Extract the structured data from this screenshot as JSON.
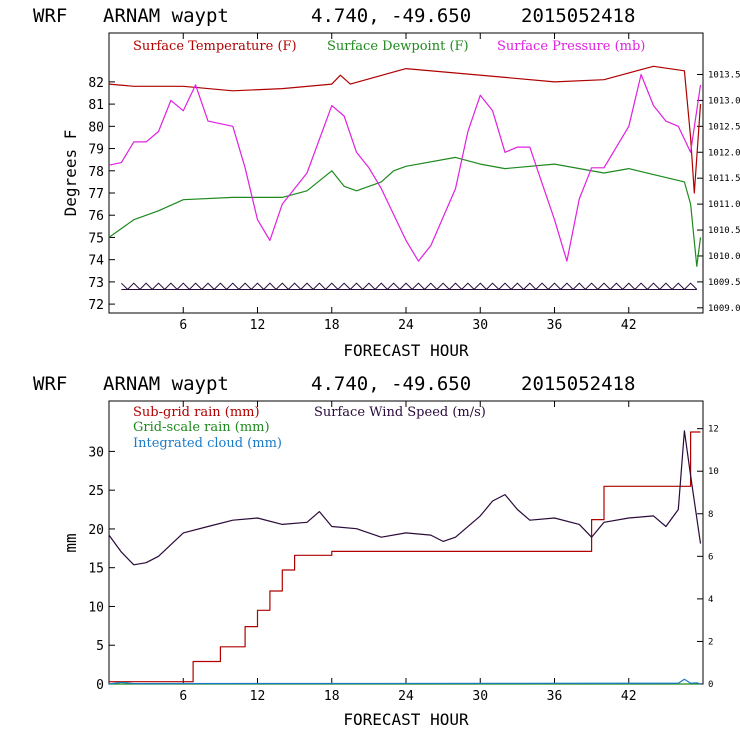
{
  "colors": {
    "temp": "#b00000",
    "dew": "#1e8a1e",
    "pres": "#e020e0",
    "wind": "#2a0a3a",
    "cloud": "#1a7ac8",
    "rain": "#b00000",
    "grid": "#1e8a1e"
  },
  "chart_data": [
    {
      "type": "line",
      "header": {
        "model": "WRF",
        "station": "ARNAM waypt",
        "coords": "4.740, -49.650",
        "date": "2015052418"
      },
      "xlabel": "FORECAST HOUR",
      "ylabel": "Degrees F",
      "xlim": [
        0,
        48
      ],
      "ylim": [
        71.6,
        84.2
      ],
      "ylim_right": [
        1008.9,
        1014.3
      ],
      "xticks": [
        "6",
        "12",
        "18",
        "24",
        "30",
        "36",
        "42"
      ],
      "yticks": [
        "72",
        "73",
        "74",
        "75",
        "76",
        "77",
        "78",
        "79",
        "80",
        "81",
        "82"
      ],
      "yticks_right": [
        "1009.0",
        "1009.5",
        "1010.0",
        "1010.5",
        "1011.0",
        "1011.5",
        "1012.0",
        "1012.5",
        "1013.0",
        "1013.5"
      ],
      "series": [
        {
          "name": "Surface Temperature (F)",
          "axis": "left",
          "color": "temp",
          "x": [
            0,
            2,
            6,
            10,
            14,
            18,
            18.7,
            19.5,
            24,
            28,
            32,
            36,
            40,
            44,
            46.5,
            47,
            47.3,
            47.8
          ],
          "y": [
            81.9,
            81.8,
            81.8,
            81.6,
            81.7,
            81.9,
            82.3,
            81.9,
            82.6,
            82.4,
            82.2,
            82,
            82.1,
            82.7,
            82.5,
            79.5,
            77,
            81
          ]
        },
        {
          "name": "Surface Dewpoint (F)",
          "axis": "left",
          "color": "dew",
          "x": [
            0,
            2,
            4,
            6,
            10,
            14,
            16,
            18,
            19,
            20,
            22,
            23,
            24,
            28,
            30,
            32,
            36,
            40,
            42,
            46.5,
            47,
            47.5,
            47.8
          ],
          "y": [
            75,
            75.8,
            76.2,
            76.7,
            76.8,
            76.8,
            77.1,
            78,
            77.3,
            77.1,
            77.5,
            78,
            78.2,
            78.6,
            78.3,
            78.1,
            78.3,
            77.9,
            78.1,
            77.5,
            76.5,
            73.7,
            75
          ]
        },
        {
          "name": "Surface Pressure (mb)",
          "axis": "right",
          "color": "pres",
          "x": [
            0,
            1,
            2,
            3,
            4,
            5,
            6,
            7,
            8,
            10,
            11,
            12,
            13,
            14,
            16,
            18,
            19,
            20,
            21,
            22,
            24,
            25,
            26,
            28,
            29,
            30,
            31,
            32,
            33,
            34,
            35,
            36,
            37,
            38,
            39,
            40,
            42,
            43,
            44,
            45,
            46,
            47,
            47.8
          ],
          "y": [
            1011.75,
            1011.8,
            1012.2,
            1012.2,
            1012.4,
            1013.0,
            1012.8,
            1013.3,
            1012.6,
            1012.5,
            1011.7,
            1010.7,
            1010.3,
            1011.0,
            1011.6,
            1012.9,
            1012.7,
            1012.0,
            1011.7,
            1011.3,
            1010.3,
            1009.9,
            1010.2,
            1011.3,
            1012.4,
            1013.1,
            1012.8,
            1012.0,
            1012.1,
            1012.1,
            1011.4,
            1010.7,
            1009.9,
            1011.1,
            1011.7,
            1011.7,
            1012.5,
            1013.5,
            1012.9,
            1012.6,
            1012.5,
            1012.0,
            1013.3
          ]
        }
      ],
      "rain_marks": {
        "y": 72.8,
        "amplitude": 0.14,
        "period_hours": 1
      }
    },
    {
      "type": "line",
      "header": {
        "model": "WRF",
        "station": "ARNAM waypt",
        "coords": "4.740, -49.650",
        "date": "2015052418"
      },
      "xlabel": "FORECAST HOUR",
      "ylabel": "mm",
      "xlim": [
        0,
        48
      ],
      "ylim": [
        0,
        36.5
      ],
      "ylim_right": [
        0,
        13.3
      ],
      "xticks": [
        "6",
        "12",
        "18",
        "24",
        "30",
        "36",
        "42"
      ],
      "yticks": [
        "0",
        "5",
        "10",
        "15",
        "20",
        "25",
        "30"
      ],
      "yticks_right": [
        "0",
        "2",
        "4",
        "6",
        "8",
        "10",
        "12"
      ],
      "series": [
        {
          "name": "Sub-grid rain (mm)",
          "axis": "left",
          "color": "rain",
          "step": true,
          "x": [
            0,
            1,
            6.8,
            9,
            11,
            12,
            13,
            14,
            15,
            18,
            39,
            40,
            47,
            47.8
          ],
          "y": [
            0.3,
            0.3,
            2.9,
            4.8,
            7.4,
            9.5,
            12,
            14.7,
            16.6,
            17.1,
            21.2,
            25.5,
            32.5,
            32.5
          ]
        },
        {
          "name": "Grid-scale rain (mm)",
          "axis": "left",
          "color": "grid",
          "step": true,
          "x": [
            0,
            47.8
          ],
          "y": [
            0,
            0
          ]
        },
        {
          "name": "Integrated cloud (mm)",
          "axis": "left",
          "color": "cloud",
          "x": [
            0,
            1,
            2,
            46,
            46.5,
            47,
            47.5,
            47.8
          ],
          "y": [
            0,
            0.2,
            0.05,
            0.1,
            0.6,
            0.1,
            0.15,
            0
          ]
        },
        {
          "name": "Surface Wind Speed (m/s)",
          "axis": "right",
          "color": "wind",
          "x": [
            0,
            1,
            2,
            3,
            4,
            6,
            8,
            10,
            12,
            14,
            16,
            17,
            18,
            20,
            22,
            24,
            26,
            27,
            28,
            30,
            31,
            32,
            33,
            34,
            36,
            38,
            39,
            40,
            42,
            44,
            45,
            46,
            46.5,
            47,
            47.8
          ],
          "y": [
            7.0,
            6.2,
            5.6,
            5.7,
            6.0,
            7.1,
            7.4,
            7.7,
            7.8,
            7.5,
            7.6,
            8.1,
            7.4,
            7.3,
            6.9,
            7.1,
            7.0,
            6.7,
            6.9,
            7.9,
            8.6,
            8.9,
            8.2,
            7.7,
            7.8,
            7.5,
            6.9,
            7.6,
            7.8,
            7.9,
            7.4,
            8.2,
            11.9,
            9.8,
            6.6
          ]
        }
      ]
    }
  ]
}
